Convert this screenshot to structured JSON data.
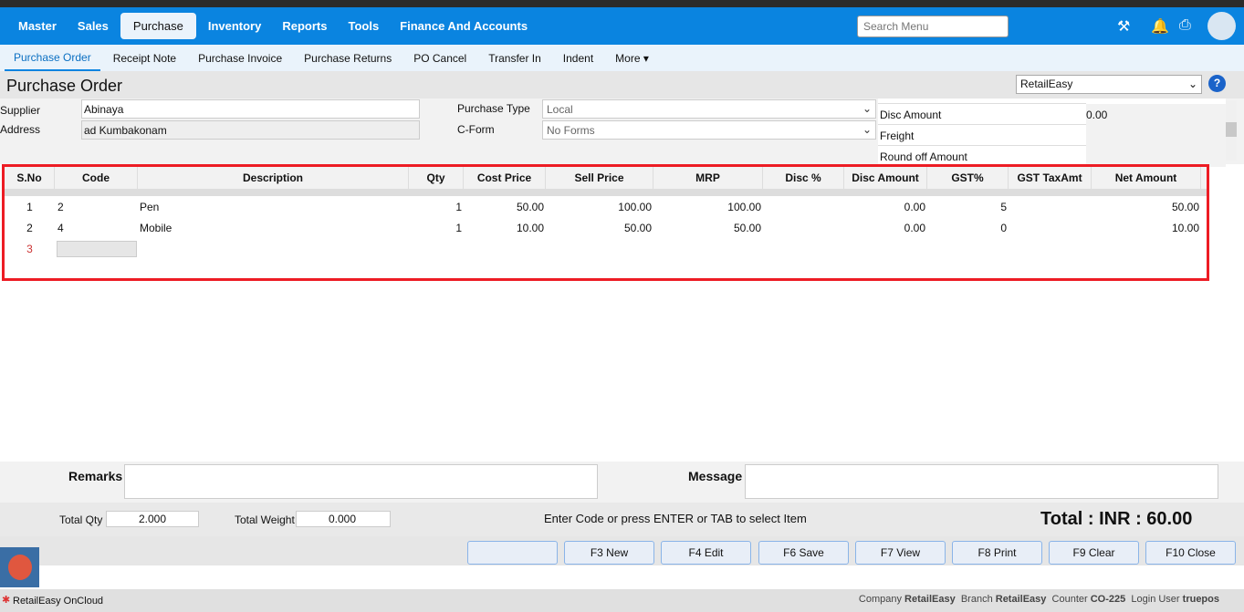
{
  "nav": {
    "items": [
      "Master",
      "Sales",
      "Purchase",
      "Inventory",
      "Reports",
      "Tools",
      "Finance And Accounts"
    ],
    "active": "Purchase",
    "search_placeholder": "Search Menu"
  },
  "subnav": {
    "items": [
      "Purchase Order",
      "Receipt Note",
      "Purchase Invoice",
      "Purchase Returns",
      "PO Cancel",
      "Transfer In",
      "Indent",
      "More ▾"
    ]
  },
  "page": {
    "title": "Purchase Order",
    "company_select": "RetailEasy"
  },
  "form": {
    "supplier_label": "Supplier",
    "supplier": "Abinaya",
    "address_label": "Address",
    "address": "ad Kumbakonam",
    "purchase_type_label": "Purchase Type",
    "purchase_type": "Local",
    "cform_label": "C-Form",
    "cform": "No Forms"
  },
  "summary": [
    {
      "label": "Disc Amount",
      "value": "0.00"
    },
    {
      "label": "Freight",
      "value": ""
    },
    {
      "label": "Round off Amount",
      "value": ""
    }
  ],
  "grid": {
    "columns": [
      "S.No",
      "Code",
      "Description",
      "Qty",
      "Cost Price",
      "Sell Price",
      "MRP",
      "Disc %",
      "Disc Amount",
      "GST%",
      "GST TaxAmt",
      "Net Amount"
    ],
    "rows": [
      [
        "1",
        "2",
        "Pen",
        "1",
        "50.00",
        "100.00",
        "100.00",
        "",
        "0.00",
        "5",
        "",
        "50.00"
      ],
      [
        "2",
        "4",
        "Mobile",
        "1",
        "10.00",
        "50.00",
        "50.00",
        "",
        "0.00",
        "0",
        "",
        "10.00"
      ]
    ],
    "next_sno": "3"
  },
  "footer": {
    "remarks_label": "Remarks",
    "message_label": "Message",
    "total_qty_label": "Total Qty",
    "total_qty": "2.000",
    "total_weight_label": "Total Weight",
    "total_weight": "0.000",
    "hint": "Enter Code or press ENTER or TAB to select Item",
    "total": "Total : INR : 60.00"
  },
  "buttons": [
    "",
    "F3 New",
    "F4 Edit",
    "F6 Save",
    "F7 View",
    "F8 Print",
    "F9 Clear",
    "F10 Close"
  ],
  "status": {
    "app": "RetailEasy OnCloud",
    "company_label": "Company",
    "company": "RetailEasy",
    "branch_label": "Branch",
    "branch": "RetailEasy",
    "counter_label": "Counter",
    "counter": "CO-225",
    "user_label": "Login User",
    "user": "truepos"
  }
}
